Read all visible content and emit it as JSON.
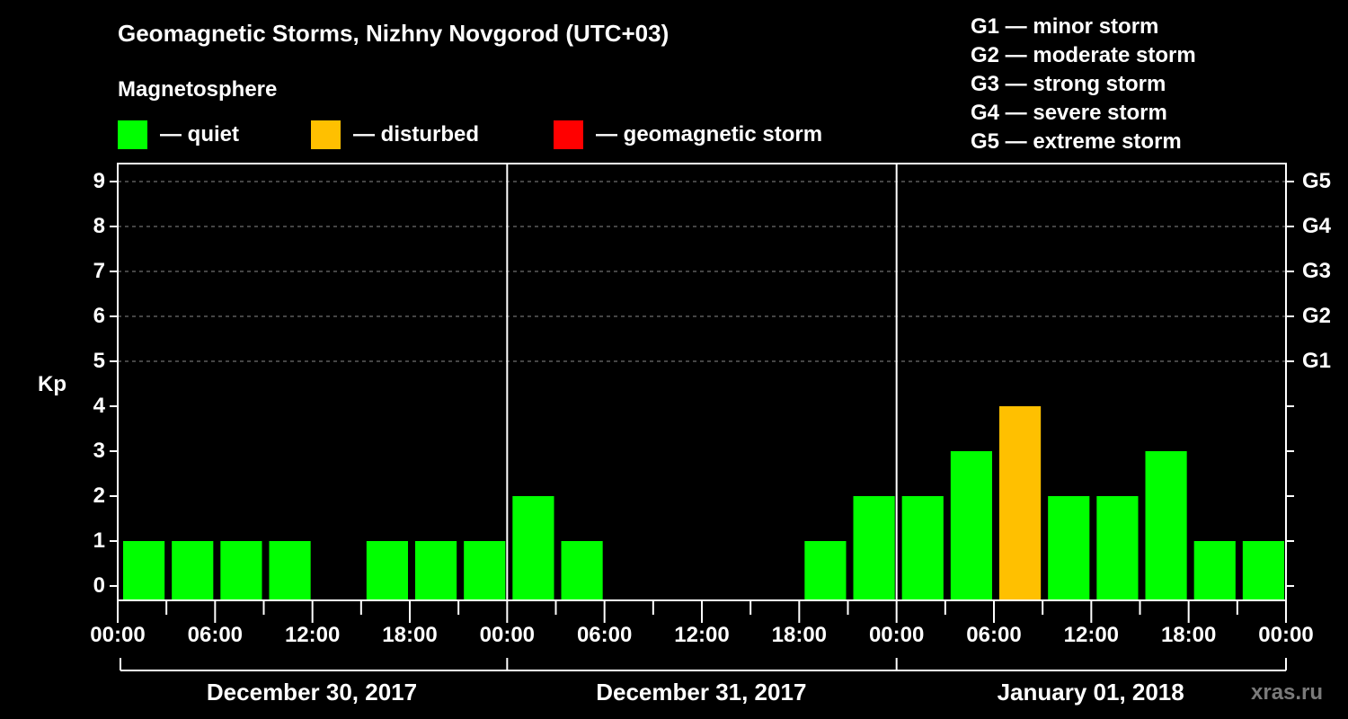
{
  "header": {
    "title": "Geomagnetic Storms, Nizhny Novgorod (UTC+03)",
    "subtitle": "Magnetosphere"
  },
  "legend": [
    {
      "label": "— quiet",
      "color": "#00ff00"
    },
    {
      "label": "— disturbed",
      "color": "#ffc000"
    },
    {
      "label": "— geomagnetic storm",
      "color": "#ff0000"
    }
  ],
  "g_scale": [
    "G1 — minor storm",
    "G2 — moderate storm",
    "G3 — strong storm",
    "G4 — severe storm",
    "G5 — extreme storm"
  ],
  "watermark": "xras.ru",
  "chart_data": {
    "type": "bar",
    "title": "Geomagnetic Storms, Nizhny Novgorod (UTC+03)",
    "subtitle": "Magnetosphere",
    "ylabel": "Kp",
    "xlabel": "",
    "ylim": [
      0,
      9
    ],
    "yticks": [
      0,
      1,
      2,
      3,
      4,
      5,
      6,
      7,
      8,
      9
    ],
    "right_axis_ticks": [
      {
        "kp": 5,
        "label": "G1"
      },
      {
        "kp": 6,
        "label": "G2"
      },
      {
        "kp": 7,
        "label": "G3"
      },
      {
        "kp": 8,
        "label": "G4"
      },
      {
        "kp": 9,
        "label": "G5"
      }
    ],
    "grid": "dashed horizontal lines at Kp 5-9",
    "xtick_labels": [
      "00:00",
      "06:00",
      "12:00",
      "18:00",
      "00:00",
      "06:00",
      "12:00",
      "18:00",
      "00:00",
      "06:00",
      "12:00",
      "18:00",
      "00:00"
    ],
    "days": [
      "December 30, 2017",
      "December 31, 2017",
      "January 01, 2018"
    ],
    "interval_hours": 3,
    "categories": [
      "Dec 30 00-03",
      "Dec 30 03-06",
      "Dec 30 06-09",
      "Dec 30 09-12",
      "Dec 30 12-15",
      "Dec 30 15-18",
      "Dec 30 18-21",
      "Dec 30 21-24",
      "Dec 31 00-03",
      "Dec 31 03-06",
      "Dec 31 06-09",
      "Dec 31 09-12",
      "Dec 31 12-15",
      "Dec 31 15-18",
      "Dec 31 18-21",
      "Dec 31 21-24",
      "Jan 01 00-03",
      "Jan 01 03-06",
      "Jan 01 06-09",
      "Jan 01 09-12",
      "Jan 01 12-15",
      "Jan 01 15-18",
      "Jan 01 18-21",
      "Jan 01 21-24"
    ],
    "values": [
      1,
      1,
      1,
      1,
      0,
      1,
      1,
      1,
      2,
      1,
      0,
      0,
      0,
      0,
      1,
      2,
      2,
      3,
      4,
      2,
      2,
      3,
      1,
      1
    ],
    "status": [
      "quiet",
      "quiet",
      "quiet",
      "quiet",
      "quiet",
      "quiet",
      "quiet",
      "quiet",
      "quiet",
      "quiet",
      "quiet",
      "quiet",
      "quiet",
      "quiet",
      "quiet",
      "quiet",
      "quiet",
      "quiet",
      "disturbed",
      "quiet",
      "quiet",
      "quiet",
      "quiet",
      "quiet"
    ],
    "colors": {
      "quiet": "#00ff00",
      "disturbed": "#ffc000",
      "storm": "#ff0000"
    },
    "legend": [
      "quiet",
      "disturbed",
      "geomagnetic storm"
    ]
  }
}
